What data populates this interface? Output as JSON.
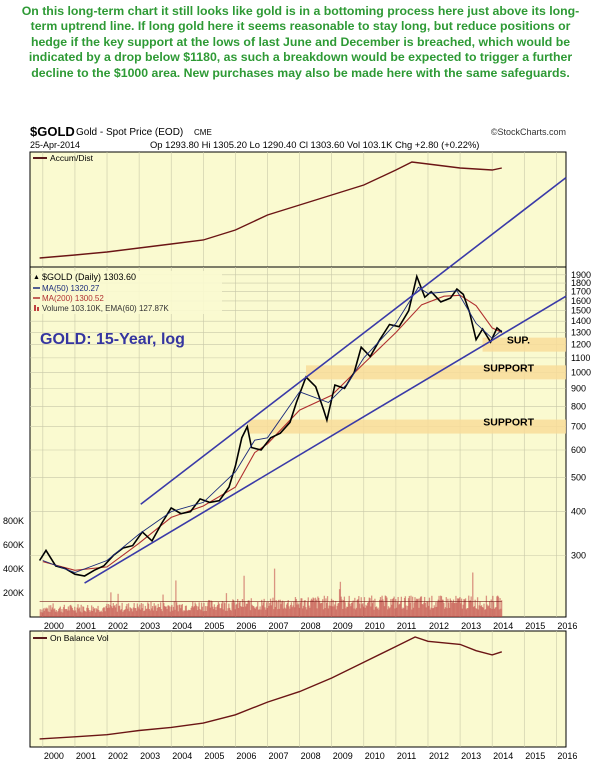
{
  "commentary": "On this long-term chart it still looks like gold is in a bottoming process here just above its long-term uptrend line. If long gold here it seems reasonable to stay long, but reduce positions or hedge if the key support at the lows of last June and December is breached, which would be indicated by a drop below $1180, as such a breakdown would be expected to trigger a further decline to the $1000 area. New purchases may also be made here with the same safeguards.",
  "header": {
    "symbol": "$GOLD",
    "name": "Gold - Spot Price (EOD)",
    "exchange": "CME",
    "brand": "©StockCharts.com",
    "date": "25-Apr-2014",
    "quote": "Op 1293.80  Hi 1305.20  Lo 1290.40  Cl 1303.60  Vol 103.1K  Chg +2.80 (+0.22%)",
    "up_arrow": "▲"
  },
  "accum_panel": {
    "label": "Accum/Dist"
  },
  "price_panel": {
    "legend": {
      "main": "$GOLD (Daily) 1303.60",
      "ma50": "MA(50) 1320.27",
      "ma200": "MA(200) 1300.52",
      "volume": "Volume 103.10K, EMA(60) 127.87K"
    },
    "annotation": "GOLD: 15-Year, log",
    "zone_labels": {
      "sup": "SUP.",
      "support1000": "SUPPORT",
      "support700": "SUPPORT"
    },
    "volume_ticks": [
      "800K",
      "600K",
      "400K",
      "200K"
    ]
  },
  "obv_panel": {
    "label": "On Balance Vol"
  },
  "colors": {
    "commentary": "#2e9a35",
    "panel_bg": "#fafad0",
    "trendline": "#3a3aa8",
    "ma50": "#1a2a7a",
    "ma200": "#b03030",
    "support_zone": "#f8dc9a",
    "volume": "#c04040",
    "annotation": "#3535a0"
  },
  "chart_data": {
    "type": "line",
    "title": "$GOLD Gold - Spot Price (EOD) CME",
    "subtitle": "GOLD: 15-Year, log",
    "scale": "log",
    "ylim": [
      200,
      2000
    ],
    "x_ticks": [
      "2000",
      "2001",
      "2002",
      "2003",
      "2004",
      "2005",
      "2006",
      "2007",
      "2008",
      "2009",
      "2010",
      "2011",
      "2012",
      "2013",
      "2014",
      "2015",
      "2016"
    ],
    "y_ticks": [
      300,
      400,
      500,
      600,
      700,
      800,
      900,
      1000,
      1100,
      1200,
      1300,
      1400,
      1500,
      1600,
      1700,
      1800,
      1900
    ],
    "grid": true,
    "legend_position": "top-left",
    "series": [
      {
        "name": "$GOLD (Daily)",
        "x": [
          1999.9,
          2000.1,
          2000.4,
          2000.7,
          2001.0,
          2001.3,
          2001.6,
          2001.9,
          2002.2,
          2002.5,
          2002.8,
          2003.1,
          2003.4,
          2003.7,
          2004.0,
          2004.3,
          2004.6,
          2004.9,
          2005.2,
          2005.5,
          2005.8,
          2006.0,
          2006.2,
          2006.37,
          2006.5,
          2006.8,
          2007.1,
          2007.4,
          2007.7,
          2007.9,
          2008.2,
          2008.5,
          2008.75,
          2008.85,
          2009.1,
          2009.4,
          2009.7,
          2009.92,
          2010.2,
          2010.5,
          2010.8,
          2011.1,
          2011.4,
          2011.65,
          2011.9,
          2012.1,
          2012.4,
          2012.7,
          2012.9,
          2013.1,
          2013.3,
          2013.5,
          2013.7,
          2013.95,
          2014.15,
          2014.3
        ],
        "values": [
          290,
          310,
          280,
          275,
          265,
          262,
          272,
          280,
          300,
          315,
          320,
          350,
          330,
          370,
          410,
          395,
          400,
          435,
          425,
          430,
          470,
          540,
          650,
          700,
          610,
          600,
          650,
          670,
          720,
          820,
          970,
          910,
          780,
          730,
          920,
          900,
          1000,
          1180,
          1110,
          1240,
          1370,
          1350,
          1500,
          1880,
          1640,
          1700,
          1590,
          1630,
          1730,
          1670,
          1480,
          1240,
          1330,
          1220,
          1340,
          1304
        ]
      },
      {
        "name": "MA(50)",
        "x": [
          2000.0,
          2001.0,
          2002.0,
          2003.0,
          2004.0,
          2005.0,
          2006.0,
          2006.6,
          2007.0,
          2008.0,
          2008.9,
          2009.5,
          2010.0,
          2011.0,
          2011.7,
          2012.0,
          2012.9,
          2013.5,
          2014.0,
          2014.3
        ],
        "values": [
          290,
          268,
          290,
          345,
          400,
          425,
          520,
          640,
          650,
          880,
          820,
          930,
          1100,
          1380,
          1750,
          1680,
          1710,
          1380,
          1250,
          1320
        ]
      },
      {
        "name": "MA(200)",
        "x": [
          2000.0,
          2001.0,
          2002.0,
          2003.0,
          2004.0,
          2005.0,
          2006.0,
          2006.6,
          2007.0,
          2008.0,
          2009.0,
          2010.0,
          2011.0,
          2011.8,
          2012.5,
          2013.0,
          2013.5,
          2014.0,
          2014.3
        ],
        "values": [
          288,
          272,
          278,
          325,
          385,
          415,
          470,
          590,
          625,
          780,
          860,
          1060,
          1300,
          1560,
          1650,
          1660,
          1550,
          1340,
          1300
        ]
      }
    ],
    "trendlines": [
      {
        "name": "upper channel line",
        "x": [
          2003.05,
          2016.3
        ],
        "values": [
          420,
          3600
        ]
      },
      {
        "name": "long-term uptrend line",
        "x": [
          2001.3,
          2016.3
        ],
        "values": [
          250,
          1650
        ]
      }
    ],
    "support_zones": [
      {
        "label": "SUP.",
        "price": 1200
      },
      {
        "label": "SUPPORT",
        "price": 1000
      },
      {
        "label": "SUPPORT",
        "price": 700
      }
    ],
    "accum_dist": {
      "x": [
        1999.9,
        2001,
        2002,
        2003,
        2004,
        2005,
        2006,
        2007,
        2008,
        2009,
        2010,
        2011,
        2011.5,
        2012,
        2013,
        2014,
        2014.3
      ],
      "values": [
        0.02,
        0.05,
        0.08,
        0.12,
        0.16,
        0.2,
        0.3,
        0.45,
        0.55,
        0.65,
        0.75,
        0.9,
        0.98,
        0.96,
        0.92,
        0.9,
        0.92
      ]
    },
    "volume": {
      "ylim": [
        0,
        1000000
      ],
      "typical_range": [
        60000,
        180000
      ],
      "ema60_last": 127870
    },
    "on_balance_volume": {
      "x": [
        1999.9,
        2001,
        2002,
        2003,
        2004,
        2005,
        2006,
        2007,
        2008,
        2009,
        2010,
        2011,
        2011.6,
        2012,
        2013,
        2013.5,
        2014,
        2014.3
      ],
      "values": [
        0.02,
        0.04,
        0.06,
        0.1,
        0.13,
        0.17,
        0.25,
        0.37,
        0.47,
        0.6,
        0.75,
        0.9,
        0.99,
        0.95,
        0.92,
        0.86,
        0.82,
        0.85
      ]
    }
  }
}
